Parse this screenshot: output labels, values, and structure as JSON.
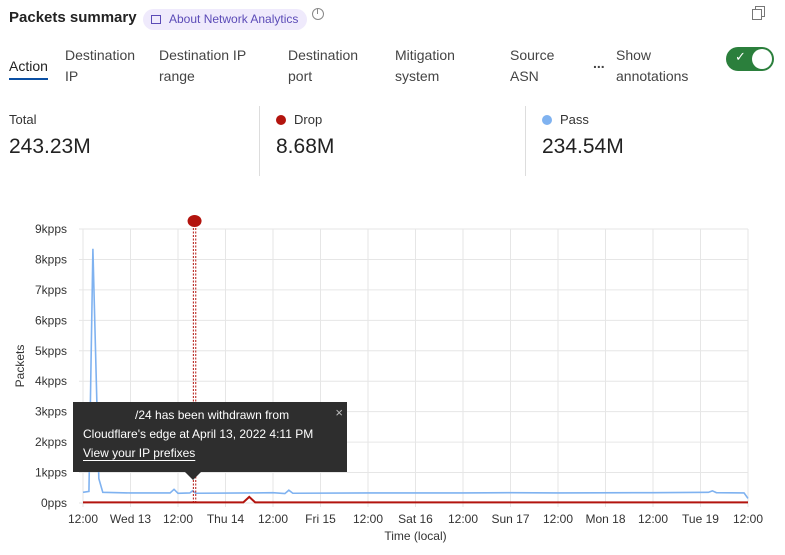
{
  "header": {
    "title": "Packets summary",
    "about_label": "About Network Analytics",
    "icons": [
      "book-icon",
      "clock-icon",
      "copy-icon"
    ]
  },
  "tabs": [
    {
      "label": "Action",
      "active": true
    },
    {
      "label": "Destination IP"
    },
    {
      "label": "Destination IP range"
    },
    {
      "label": "Destination port"
    },
    {
      "label": "Mitigation system"
    },
    {
      "label": "Source ASN"
    }
  ],
  "more_label": "...",
  "annotations_toggle": {
    "label": "Show annotations",
    "on": true
  },
  "summary": [
    {
      "label": "Total",
      "value": "243.23M"
    },
    {
      "label": "Drop",
      "value": "8.68M",
      "color": "#b3140e"
    },
    {
      "label": "Pass",
      "value": "234.54M",
      "color": "#7fb2f0"
    }
  ],
  "tooltip": {
    "line1": "/24 has been withdrawn from",
    "line2": "Cloudflare's edge at April 13, 2022 4:11 PM",
    "link": "View your IP prefixes",
    "close": "×"
  },
  "chart_data": {
    "type": "line",
    "xlabel": "Time (local)",
    "ylabel": "Packets",
    "xlim": [
      "2022-04-12 12:00",
      "2022-04-19 12:00"
    ],
    "ylim": [
      0,
      9000
    ],
    "yticks": [
      "0pps",
      "1kpps",
      "2kpps",
      "3kpps",
      "4kpps",
      "5kpps",
      "6kpps",
      "7kpps",
      "8kpps",
      "9kpps"
    ],
    "xticks": [
      "12:00",
      "Wed 13",
      "12:00",
      "Thu 14",
      "12:00",
      "Fri 15",
      "12:00",
      "Sat 16",
      "12:00",
      "Sun 17",
      "12:00",
      "Mon 18",
      "12:00",
      "Tue 19",
      "12:00"
    ],
    "grid": true,
    "annotation": {
      "time": "2022-04-13 16:11",
      "color": "#b3140e"
    },
    "series": [
      {
        "name": "Pass",
        "color": "#7fb2f0",
        "points": [
          [
            "2022-04-12 12:00",
            350
          ],
          [
            "2022-04-12 13:30",
            380
          ],
          [
            "2022-04-12 14:30",
            8350
          ],
          [
            "2022-04-12 16:00",
            800
          ],
          [
            "2022-04-12 17:00",
            350
          ],
          [
            "2022-04-13 00:00",
            330
          ],
          [
            "2022-04-13 10:00",
            330
          ],
          [
            "2022-04-13 11:00",
            450
          ],
          [
            "2022-04-13 12:00",
            320
          ],
          [
            "2022-04-13 15:00",
            330
          ],
          [
            "2022-04-13 15:40",
            400
          ],
          [
            "2022-04-13 16:30",
            320
          ],
          [
            "2022-04-14 06:00",
            330
          ],
          [
            "2022-04-14 12:00",
            340
          ],
          [
            "2022-04-14 15:00",
            310
          ],
          [
            "2022-04-14 16:00",
            420
          ],
          [
            "2022-04-14 17:00",
            320
          ],
          [
            "2022-04-15 12:00",
            330
          ],
          [
            "2022-04-16 12:00",
            330
          ],
          [
            "2022-04-17 00:00",
            340
          ],
          [
            "2022-04-17 12:00",
            330
          ],
          [
            "2022-04-18 12:00",
            340
          ],
          [
            "2022-04-19 02:00",
            350
          ],
          [
            "2022-04-19 03:00",
            400
          ],
          [
            "2022-04-19 04:00",
            340
          ],
          [
            "2022-04-19 11:00",
            330
          ],
          [
            "2022-04-19 12:00",
            150
          ]
        ]
      },
      {
        "name": "Drop",
        "color": "#b3140e",
        "points": [
          [
            "2022-04-12 12:00",
            20
          ],
          [
            "2022-04-14 04:30",
            20
          ],
          [
            "2022-04-14 06:00",
            200
          ],
          [
            "2022-04-14 07:30",
            20
          ],
          [
            "2022-04-19 12:00",
            20
          ]
        ]
      }
    ]
  }
}
